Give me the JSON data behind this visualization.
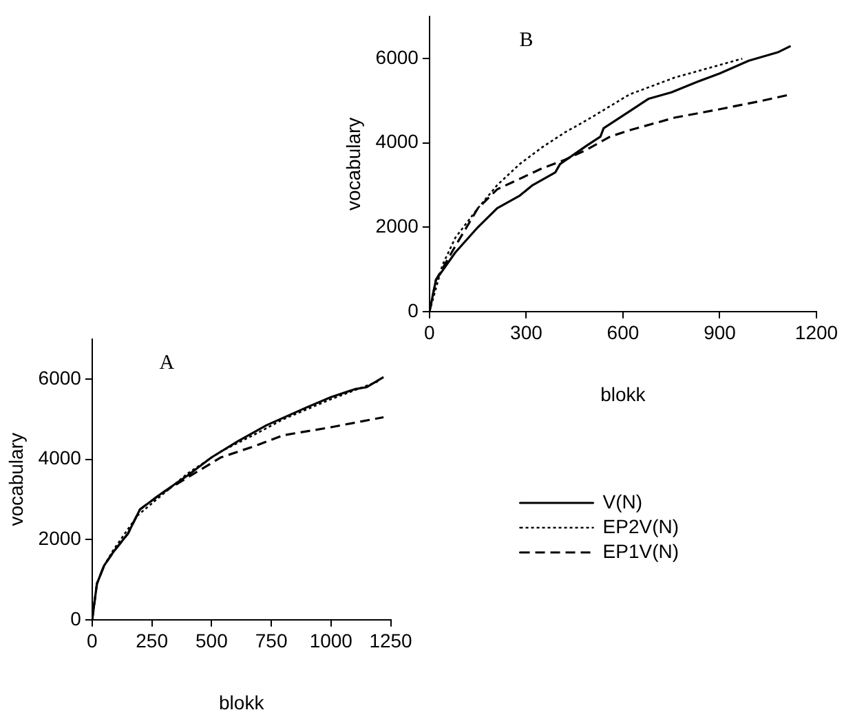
{
  "chart_data": [
    {
      "type": "line",
      "title": "B",
      "xlabel": "blokk",
      "ylabel": "vocabulary",
      "xlim": [
        0,
        1200
      ],
      "xticks": [
        0,
        300,
        600,
        900,
        1200
      ],
      "ylim": [
        0,
        7000
      ],
      "yticks": [
        0,
        2000,
        4000,
        6000
      ],
      "grid": false,
      "legend": false,
      "marker": "none",
      "series": [
        {
          "color": "#000000",
          "line_style": "solid",
          "x": [
            0,
            20,
            80,
            150,
            210,
            280,
            320,
            390,
            405,
            490,
            530,
            540,
            620,
            680,
            750,
            830,
            900,
            990,
            1080,
            1120
          ],
          "values": [
            0,
            750,
            1400,
            2000,
            2450,
            2750,
            3000,
            3300,
            3500,
            3950,
            4150,
            4350,
            4750,
            5050,
            5200,
            5450,
            5650,
            5950,
            6150,
            6300
          ]
        },
        {
          "color": "#000000",
          "line_style": "dotted",
          "x": [
            0,
            40,
            80,
            150,
            210,
            280,
            350,
            420,
            490,
            620,
            760,
            900,
            970
          ],
          "values": [
            0,
            1100,
            1750,
            2450,
            3000,
            3500,
            3900,
            4250,
            4550,
            5150,
            5550,
            5850,
            6000
          ]
        },
        {
          "color": "#000000",
          "line_style": "dashed",
          "x": [
            0,
            20,
            80,
            150,
            210,
            280,
            350,
            420,
            490,
            560,
            620,
            760,
            900,
            1030,
            1120
          ],
          "values": [
            0,
            750,
            1550,
            2450,
            2900,
            3150,
            3400,
            3600,
            3850,
            4150,
            4300,
            4600,
            4800,
            5000,
            5150
          ]
        }
      ]
    },
    {
      "type": "line",
      "title": "A",
      "xlabel": "blokk",
      "ylabel": "vocabulary",
      "xlim": [
        0,
        1250
      ],
      "xticks": [
        0,
        250,
        500,
        750,
        1000,
        1250
      ],
      "ylim": [
        0,
        7000
      ],
      "yticks": [
        0,
        2000,
        4000,
        6000
      ],
      "grid": false,
      "legend": "right",
      "marker": "none",
      "series": [
        {
          "name": "V(N)",
          "color": "#000000",
          "line_style": "solid",
          "x": [
            0,
            20,
            50,
            90,
            150,
            200,
            290,
            400,
            500,
            610,
            730,
            900,
            1000,
            1100,
            1150,
            1220
          ],
          "values": [
            0,
            900,
            1350,
            1700,
            2150,
            2750,
            3150,
            3600,
            4050,
            4450,
            4850,
            5300,
            5550,
            5750,
            5800,
            6050
          ]
        },
        {
          "name": "EP2V(N)",
          "color": "#000000",
          "line_style": "dotted",
          "x": [
            0,
            20,
            50,
            90,
            190,
            260,
            400,
            540,
            690,
            800,
            1000,
            1200
          ],
          "values": [
            0,
            900,
            1350,
            1750,
            2600,
            2950,
            3650,
            4200,
            4650,
            5000,
            5500,
            5950
          ]
        },
        {
          "name": "EP1V(N)",
          "color": "#000000",
          "line_style": "dashed",
          "x": [
            0,
            20,
            50,
            90,
            150,
            200,
            290,
            400,
            540,
            690,
            800,
            1000,
            1220
          ],
          "values": [
            0,
            900,
            1350,
            1700,
            2150,
            2750,
            3150,
            3550,
            4050,
            4350,
            4600,
            4800,
            5050
          ]
        }
      ]
    }
  ]
}
